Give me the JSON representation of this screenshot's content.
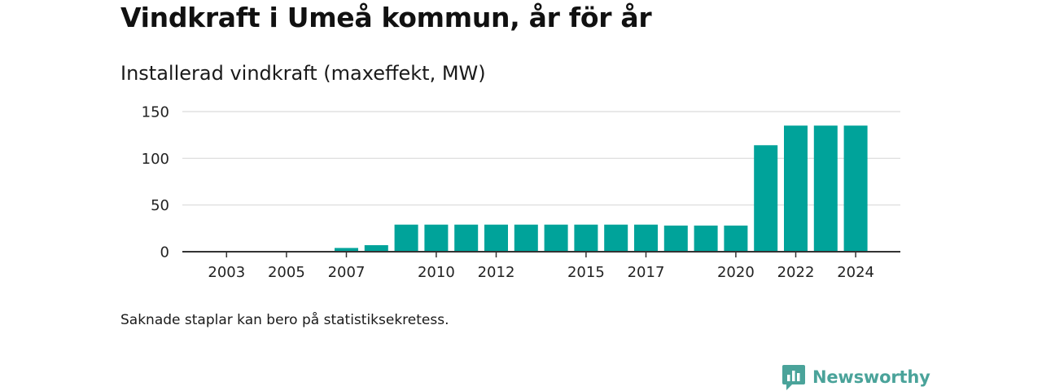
{
  "header": {
    "title": "Vindkraft i Umeå kommun, år för år",
    "subtitle": "Installerad vindkraft (maxeffekt, MW)"
  },
  "chart_data": {
    "type": "bar",
    "x": [
      2002,
      2003,
      2004,
      2005,
      2006,
      2007,
      2008,
      2009,
      2010,
      2011,
      2012,
      2013,
      2014,
      2015,
      2016,
      2017,
      2018,
      2019,
      2020,
      2021,
      2022,
      2023,
      2024
    ],
    "values": [
      null,
      null,
      null,
      null,
      null,
      4,
      7,
      29,
      29,
      29,
      29,
      29,
      29,
      29,
      29,
      29,
      28,
      28,
      28,
      114,
      135,
      135,
      135
    ],
    "xticks": [
      "2003",
      "2005",
      "2007",
      "2010",
      "2012",
      "2015",
      "2017",
      "2020",
      "2022",
      "2024"
    ],
    "yticks": [
      "0",
      "50",
      "100",
      "150"
    ],
    "ylim": [
      0,
      150
    ],
    "grid": true,
    "bar_color": "#00a39a"
  },
  "footnote": "Saknade staplar kan bero på statistiksekretess.",
  "brand": {
    "name": "Newsworthy",
    "color": "#4aa39a",
    "logo_icon": "newsworthy-logo-icon"
  }
}
